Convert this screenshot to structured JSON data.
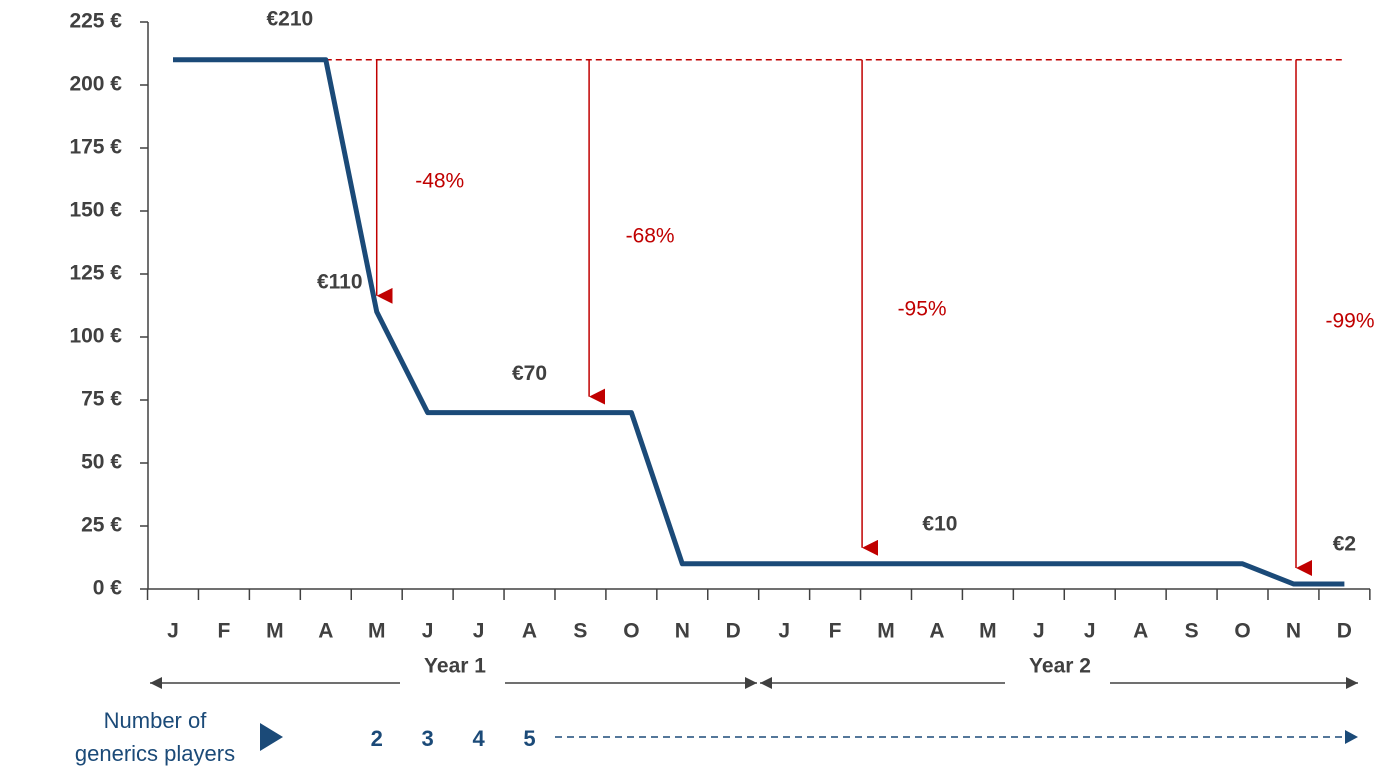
{
  "chart_data": {
    "type": "line",
    "categories": [
      "J",
      "F",
      "M",
      "A",
      "M",
      "J",
      "J",
      "A",
      "S",
      "O",
      "N",
      "D",
      "J",
      "F",
      "M",
      "A",
      "M",
      "J",
      "J",
      "A",
      "S",
      "O",
      "N",
      "D"
    ],
    "values": [
      210,
      210,
      210,
      210,
      110,
      70,
      70,
      70,
      70,
      70,
      10,
      10,
      10,
      10,
      10,
      10,
      10,
      10,
      10,
      10,
      10,
      10,
      2,
      2
    ],
    "value_labels": [
      null,
      null,
      "€210",
      null,
      "€110",
      null,
      null,
      "€70",
      null,
      null,
      null,
      null,
      null,
      null,
      null,
      "€10",
      null,
      null,
      null,
      null,
      null,
      null,
      null,
      "€2"
    ],
    "color": "#1b4a78",
    "ylim": [
      0,
      225
    ],
    "yticks": [
      {
        "value": 0,
        "label": "0 €"
      },
      {
        "value": 25,
        "label": "25 €"
      },
      {
        "value": 50,
        "label": "50 €"
      },
      {
        "value": 75,
        "label": "75 €"
      },
      {
        "value": 100,
        "label": "100 €"
      },
      {
        "value": 125,
        "label": "125 €"
      },
      {
        "value": 150,
        "label": "150 €"
      },
      {
        "value": 175,
        "label": "175 €"
      },
      {
        "value": 200,
        "label": "200 €"
      },
      {
        "value": 225,
        "label": "225 €"
      }
    ],
    "reductions": [
      "-48%",
      "-68%",
      "-95%",
      "-99%"
    ],
    "reduction_color": "#c00000",
    "years": [
      "Year 1",
      "Year 2"
    ],
    "generics_players": {
      "label": [
        "Number of",
        "generics players"
      ],
      "counts": [
        2,
        3,
        4,
        5
      ]
    }
  }
}
